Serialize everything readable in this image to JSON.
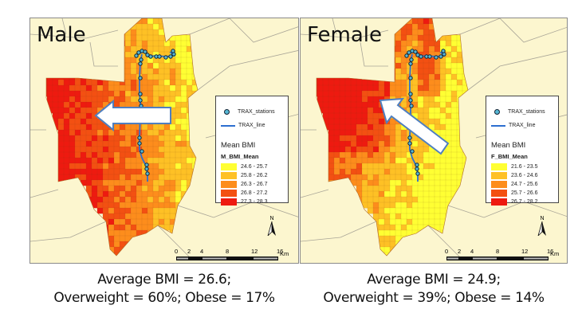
{
  "panels": [
    {
      "id": "male",
      "title": "Male",
      "legend": {
        "stations_label": "TRAX_stations",
        "line_label": "TRAX_line",
        "header": "Mean BMI",
        "field": "M_BMI_Mean",
        "classes": [
          {
            "label": "24.6 - 25.7",
            "color": "#ffff33"
          },
          {
            "label": "25.8 - 26.2",
            "color": "#fec125"
          },
          {
            "label": "26.3 - 26.7",
            "color": "#fd8d1c"
          },
          {
            "label": "26.8 - 27.2",
            "color": "#f35012"
          },
          {
            "label": "27.3 - 28.3",
            "color": "#ee1a10"
          }
        ]
      },
      "north_label": "N",
      "scale": {
        "ticks": [
          "0",
          "2",
          "4",
          "8",
          "12",
          "16"
        ],
        "unit": "Km"
      },
      "arrow_direction": "west",
      "caption": {
        "line1": "Average BMI = 26.6;",
        "line2": "Overweight = 60%; Obese = 17%"
      }
    },
    {
      "id": "female",
      "title": "Female",
      "legend": {
        "stations_label": "TRAX_stations",
        "line_label": "TRAX_line",
        "header": "Mean BMI",
        "field": "F_BMI_Mean",
        "classes": [
          {
            "label": "21.6 - 23.5",
            "color": "#ffff33"
          },
          {
            "label": "23.6 - 24.6",
            "color": "#fec125"
          },
          {
            "label": "24.7 - 25.6",
            "color": "#fd8d1c"
          },
          {
            "label": "25.7 - 26.6",
            "color": "#f35012"
          },
          {
            "label": "26.7 - 28.2",
            "color": "#ee1a10"
          }
        ]
      },
      "north_label": "N",
      "scale": {
        "ticks": [
          "0",
          "2",
          "4",
          "8",
          "12",
          "16"
        ],
        "unit": "Km"
      },
      "arrow_direction": "north-west",
      "caption": {
        "line1": "Average BMI = 24.9;",
        "line2": "Overweight = 39%; Obese = 14%"
      }
    }
  ],
  "colors": {
    "background_land": "#fcf6cf",
    "boundary": "#a9a597",
    "trax_line": "#2d6fd0",
    "station_fill": "#56b7d4",
    "arrow_fill": "#ffffff",
    "arrow_stroke": "#4f7fc0"
  }
}
